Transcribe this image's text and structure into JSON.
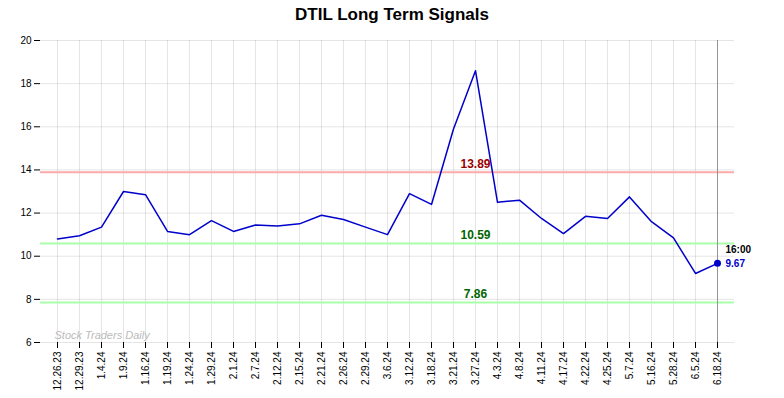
{
  "chart_data": {
    "type": "line",
    "title": "DTIL Long Term Signals",
    "categories": [
      "12.26.23",
      "12.29.23",
      "1.4.24",
      "1.9.24",
      "1.16.24",
      "1.19.24",
      "1.24.24",
      "1.29.24",
      "2.1.24",
      "2.7.24",
      "2.12.24",
      "2.15.24",
      "2.21.24",
      "2.26.24",
      "2.29.24",
      "3.6.24",
      "3.12.24",
      "3.18.24",
      "3.21.24",
      "3.27.24",
      "4.3.24",
      "4.8.24",
      "4.11.24",
      "4.17.24",
      "4.22.24",
      "4.25.24",
      "5.7.24",
      "5.16.24",
      "5.28.24",
      "6.5.24",
      "6.18.24"
    ],
    "values": [
      10.8,
      10.95,
      11.35,
      13.0,
      12.85,
      11.15,
      11.0,
      11.65,
      11.15,
      11.45,
      11.4,
      11.5,
      11.9,
      11.7,
      11.35,
      11.0,
      12.9,
      12.4,
      15.9,
      18.6,
      12.5,
      12.6,
      11.75,
      11.05,
      11.85,
      11.75,
      12.75,
      11.6,
      10.85,
      9.2,
      9.67
    ],
    "color": "#0000cc",
    "ylim": [
      6,
      20
    ],
    "yticks": [
      6,
      8,
      10,
      12,
      14,
      16,
      18,
      20
    ],
    "grid": true,
    "reference_lines": [
      {
        "value": 13.89,
        "color": "#ffaaaa",
        "label": "13.89",
        "label_color": "#990000",
        "label_x": "3.27.24"
      },
      {
        "value": 10.59,
        "color": "#aaffaa",
        "label": "10.59",
        "label_color": "#006600",
        "label_x": "3.27.24"
      },
      {
        "value": 7.86,
        "color": "#aaffaa",
        "label": "7.86",
        "label_color": "#006600",
        "label_x": "3.27.24"
      }
    ],
    "end_marker": {
      "color": "#0000cc",
      "time_label": "16:00",
      "value_label": "9.67"
    },
    "watermark": {
      "text": "Stock Traders Daily",
      "color": "#bbbbbb"
    }
  }
}
